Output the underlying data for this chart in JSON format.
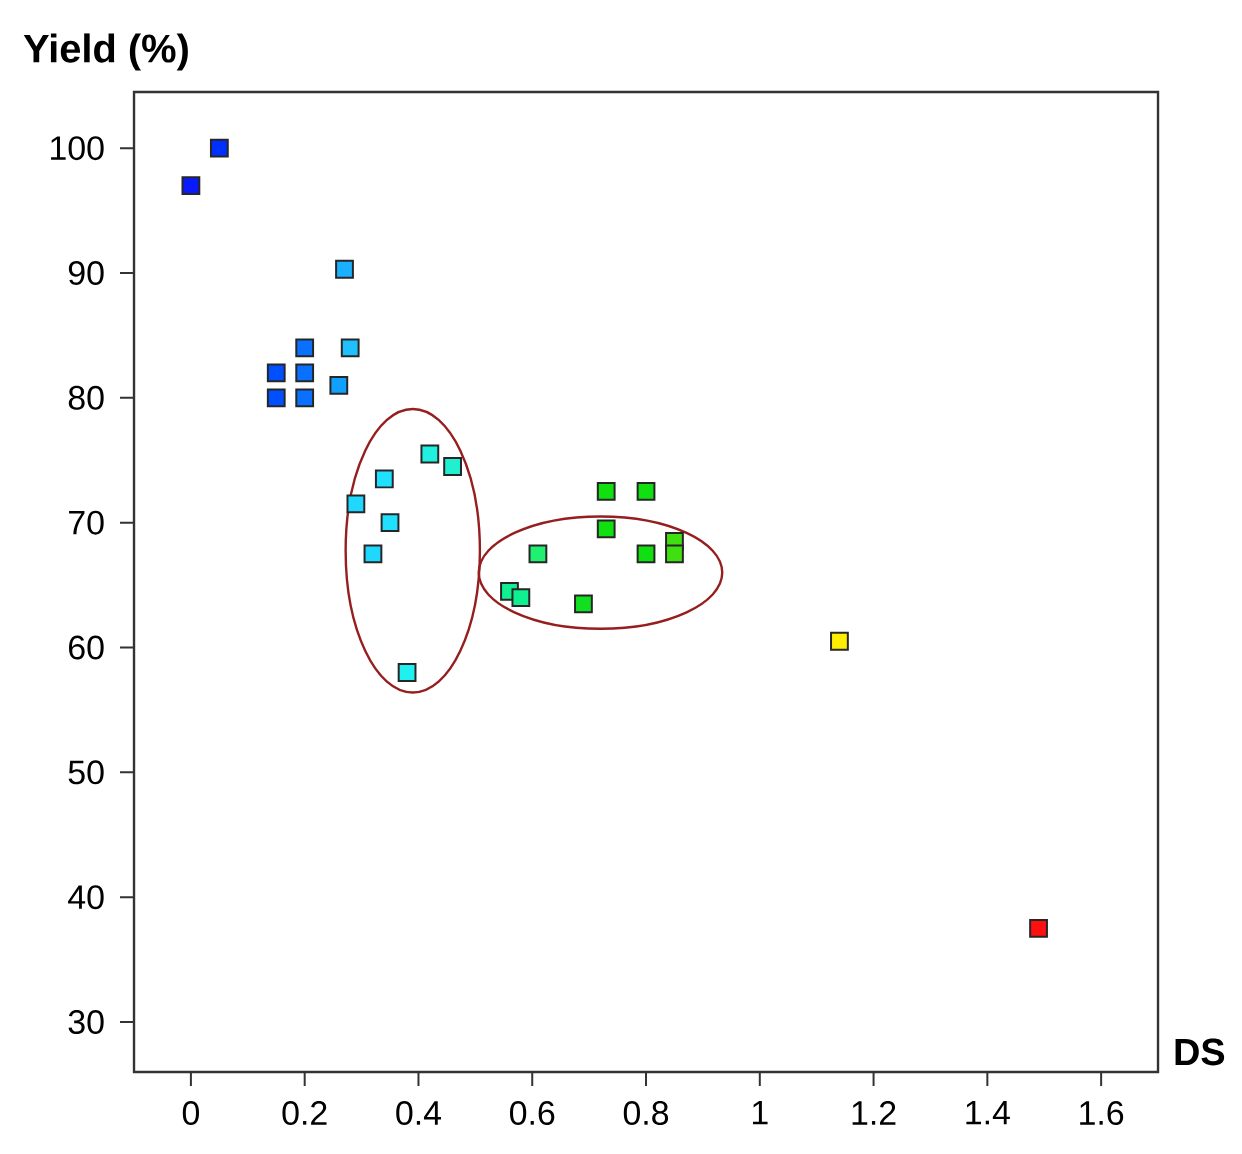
{
  "chart_data": {
    "type": "scatter",
    "xlabel": "DS",
    "ylabel": "Yield (%)",
    "x": [
      0,
      0.05,
      0.27,
      0.2,
      0.28,
      0.15,
      0.2,
      0.15,
      0.2,
      0.26,
      0.42,
      0.46,
      0.34,
      0.29,
      0.35,
      0.32,
      0.38,
      0.61,
      0.56,
      0.58,
      0.73,
      0.73,
      0.8,
      0.8,
      0.85,
      0.85,
      0.69,
      1.14,
      1.49
    ],
    "values": [
      97,
      100,
      90.3,
      84,
      84,
      82,
      82,
      80,
      80,
      81,
      75.5,
      74.5,
      73.5,
      71.5,
      70,
      67.5,
      58,
      67.5,
      64.5,
      64,
      72.5,
      69.5,
      72.5,
      67.5,
      68.5,
      67.5,
      63.5,
      60.5,
      37.5
    ],
    "colors": [
      "#0a1aff",
      "#0030ff",
      "#1ab0ff",
      "#0a70ff",
      "#20c0ff",
      "#0050ff",
      "#0a70ff",
      "#0050ff",
      "#0a70ff",
      "#10a0ff",
      "#20f0e0",
      "#20f0d0",
      "#20e0ff",
      "#20d8ff",
      "#20e0ff",
      "#20d8ff",
      "#20f0f0",
      "#20f070",
      "#10f090",
      "#10f090",
      "#10e010",
      "#10e010",
      "#10e010",
      "#10e010",
      "#40e010",
      "#40e010",
      "#10e020",
      "#ffee00",
      "#ff1010"
    ],
    "marker": "square",
    "xlim": [
      -0.1,
      1.7
    ],
    "ylim": [
      26,
      104.5
    ],
    "xticks": [
      0,
      0.2,
      0.4,
      0.6,
      0.8,
      1,
      1.2,
      1.4,
      1.6
    ],
    "yticks": [
      30,
      40,
      50,
      60,
      70,
      80,
      90,
      100
    ]
  }
}
